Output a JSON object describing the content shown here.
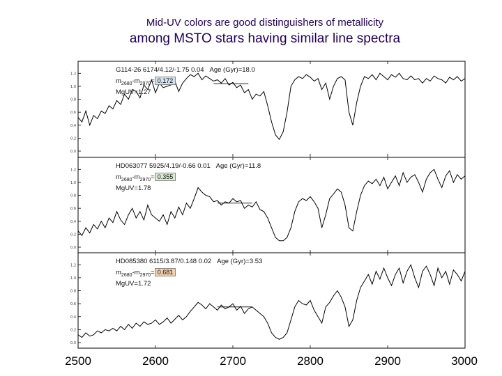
{
  "title": {
    "line1": "Mid-UV colors are good distinguishers of metallicity",
    "line2": "among MSTO stars having similar line spectra"
  },
  "chart_data": {
    "type": "line",
    "title": "Mid-UV colors are good distinguishers of metallicity among MSTO stars having similar line spectra",
    "xlabel": "",
    "xlim": [
      2500,
      3000
    ],
    "x_ticks": [
      "2500",
      "2600",
      "2700",
      "2800",
      "2900",
      "3000"
    ],
    "panels": [
      {
        "star_line": "G114-26 6174/4.12/-1.75 0.04",
        "age_label": "Age (Gyr)=18.0",
        "m_value": "0.172",
        "m_color": "#cfe3ee",
        "mguv_label": "MgUV=1.27",
        "y_ticks": [
          "1.2",
          "1.0",
          "0.8",
          "0.6",
          "0.4",
          "0.2",
          "0.0"
        ],
        "ylim": [
          0.0,
          1.3
        ],
        "continuum": [
          [
            2675,
            1.04
          ],
          [
            2720,
            1.04
          ]
        ],
        "series": {
          "x": [
            2500,
            2505,
            2510,
            2515,
            2520,
            2525,
            2530,
            2535,
            2540,
            2545,
            2550,
            2555,
            2560,
            2565,
            2570,
            2575,
            2580,
            2585,
            2590,
            2595,
            2600,
            2605,
            2610,
            2615,
            2620,
            2625,
            2630,
            2635,
            2640,
            2645,
            2650,
            2655,
            2660,
            2665,
            2670,
            2675,
            2680,
            2685,
            2690,
            2695,
            2700,
            2705,
            2710,
            2715,
            2720,
            2725,
            2730,
            2735,
            2740,
            2745,
            2750,
            2755,
            2760,
            2765,
            2770,
            2775,
            2780,
            2785,
            2790,
            2795,
            2800,
            2805,
            2810,
            2815,
            2820,
            2825,
            2830,
            2835,
            2840,
            2845,
            2850,
            2855,
            2860,
            2865,
            2870,
            2875,
            2880,
            2885,
            2890,
            2895,
            2900,
            2905,
            2910,
            2915,
            2920,
            2925,
            2930,
            2935,
            2940,
            2945,
            2950,
            2955,
            2960,
            2965,
            2970,
            2975,
            2980,
            2985,
            2990,
            2995,
            3000
          ],
          "y": [
            0.52,
            0.45,
            0.62,
            0.4,
            0.55,
            0.5,
            0.62,
            0.58,
            0.7,
            0.65,
            0.78,
            0.72,
            0.88,
            0.8,
            0.95,
            0.92,
            0.82,
            1.02,
            0.95,
            1.1,
            0.9,
            1.05,
            0.98,
            1.0,
            1.02,
            1.08,
            0.92,
            1.05,
            1.12,
            1.18,
            1.15,
            1.2,
            1.1,
            1.16,
            1.12,
            1.08,
            1.1,
            1.05,
            1.12,
            1.02,
            1.06,
            0.98,
            1.02,
            0.9,
            0.95,
            0.8,
            0.88,
            0.85,
            0.92,
            0.7,
            0.45,
            0.25,
            0.18,
            0.3,
            0.6,
            1.0,
            1.1,
            1.15,
            1.12,
            1.18,
            1.14,
            1.08,
            1.12,
            0.95,
            1.05,
            0.8,
            1.0,
            1.12,
            1.15,
            1.1,
            0.6,
            0.4,
            0.75,
            1.0,
            1.15,
            1.12,
            1.18,
            1.1,
            1.2,
            1.15,
            1.1,
            1.18,
            1.14,
            1.2,
            1.12,
            1.1,
            1.16,
            1.1,
            1.12,
            1.05,
            1.12,
            1.08,
            1.16,
            1.12,
            1.1,
            1.05,
            1.14,
            1.1,
            1.15,
            1.08,
            1.12
          ]
        }
      },
      {
        "star_line": "HD063077 5925/4.19/-0.66 0.01",
        "age_label": "Age (Gyr)=11.8",
        "m_value": "0.355",
        "m_color": "#d8ecd0",
        "mguv_label": "MgUV=1.78",
        "y_ticks": [
          "1.2",
          "1.0",
          "0.8",
          "0.6",
          "0.4",
          "0.2",
          "0.0"
        ],
        "ylim": [
          0.0,
          1.3
        ],
        "continuum": [
          [
            2680,
            0.68
          ],
          [
            2725,
            0.68
          ]
        ],
        "series": {
          "x": [
            2500,
            2505,
            2510,
            2515,
            2520,
            2525,
            2530,
            2535,
            2540,
            2545,
            2550,
            2555,
            2560,
            2565,
            2570,
            2575,
            2580,
            2585,
            2590,
            2595,
            2600,
            2605,
            2610,
            2615,
            2620,
            2625,
            2630,
            2635,
            2640,
            2645,
            2650,
            2655,
            2660,
            2665,
            2670,
            2675,
            2680,
            2685,
            2690,
            2695,
            2700,
            2705,
            2710,
            2715,
            2720,
            2725,
            2730,
            2735,
            2740,
            2745,
            2750,
            2755,
            2760,
            2765,
            2770,
            2775,
            2780,
            2785,
            2790,
            2795,
            2800,
            2805,
            2810,
            2815,
            2820,
            2825,
            2830,
            2835,
            2840,
            2845,
            2850,
            2855,
            2860,
            2865,
            2870,
            2875,
            2880,
            2885,
            2890,
            2895,
            2900,
            2905,
            2910,
            2915,
            2920,
            2925,
            2930,
            2935,
            2940,
            2945,
            2950,
            2955,
            2960,
            2965,
            2970,
            2975,
            2980,
            2985,
            2990,
            2995,
            3000
          ],
          "y": [
            0.25,
            0.18,
            0.3,
            0.22,
            0.35,
            0.28,
            0.4,
            0.3,
            0.45,
            0.38,
            0.55,
            0.42,
            0.35,
            0.5,
            0.6,
            0.45,
            0.55,
            0.42,
            0.65,
            0.5,
            0.45,
            0.4,
            0.5,
            0.35,
            0.55,
            0.45,
            0.62,
            0.5,
            0.68,
            0.6,
            0.75,
            0.92,
            0.85,
            0.8,
            0.78,
            0.7,
            0.72,
            0.65,
            0.7,
            0.68,
            0.75,
            0.7,
            0.72,
            0.6,
            0.65,
            0.62,
            0.7,
            0.58,
            0.55,
            0.45,
            0.3,
            0.15,
            0.1,
            0.1,
            0.15,
            0.3,
            0.55,
            0.7,
            0.75,
            0.72,
            0.78,
            0.7,
            0.6,
            0.3,
            0.5,
            0.75,
            0.82,
            0.9,
            0.85,
            0.65,
            0.3,
            0.25,
            0.55,
            0.8,
            0.95,
            1.02,
            0.98,
            1.05,
            0.95,
            1.08,
            0.9,
            1.0,
            1.1,
            0.95,
            1.15,
            1.0,
            1.08,
            1.12,
            1.0,
            0.85,
            1.05,
            1.15,
            1.2,
            1.05,
            0.92,
            1.1,
            1.18,
            1.0,
            1.12,
            1.05,
            1.1
          ]
        }
      },
      {
        "star_line": "HD085380 6115/3.87/0.148 0.02",
        "age_label": "Age (Gyr)=3.53",
        "m_value": "0.681",
        "m_color": "#f5cfa8",
        "mguv_label": "MgUV=1.72",
        "y_ticks": [
          "1.2",
          "1.0",
          "0.8",
          "0.6",
          "0.4",
          "0.2",
          "0.0"
        ],
        "ylim": [
          0.0,
          1.3
        ],
        "continuum": [
          [
            2680,
            0.55
          ],
          [
            2725,
            0.55
          ]
        ],
        "series": {
          "x": [
            2500,
            2505,
            2510,
            2515,
            2520,
            2525,
            2530,
            2535,
            2540,
            2545,
            2550,
            2555,
            2560,
            2565,
            2570,
            2575,
            2580,
            2585,
            2590,
            2595,
            2600,
            2605,
            2610,
            2615,
            2620,
            2625,
            2630,
            2635,
            2640,
            2645,
            2650,
            2655,
            2660,
            2665,
            2670,
            2675,
            2680,
            2685,
            2690,
            2695,
            2700,
            2705,
            2710,
            2715,
            2720,
            2725,
            2730,
            2735,
            2740,
            2745,
            2750,
            2755,
            2760,
            2765,
            2770,
            2775,
            2780,
            2785,
            2790,
            2795,
            2800,
            2805,
            2810,
            2815,
            2820,
            2825,
            2830,
            2835,
            2840,
            2845,
            2850,
            2855,
            2860,
            2865,
            2870,
            2875,
            2880,
            2885,
            2890,
            2895,
            2900,
            2905,
            2910,
            2915,
            2920,
            2925,
            2930,
            2935,
            2940,
            2945,
            2950,
            2955,
            2960,
            2965,
            2970,
            2975,
            2980,
            2985,
            2990,
            2995,
            3000
          ],
          "y": [
            0.12,
            0.08,
            0.15,
            0.1,
            0.12,
            0.18,
            0.15,
            0.2,
            0.18,
            0.22,
            0.18,
            0.25,
            0.2,
            0.28,
            0.22,
            0.3,
            0.25,
            0.32,
            0.28,
            0.3,
            0.35,
            0.28,
            0.32,
            0.38,
            0.3,
            0.36,
            0.42,
            0.35,
            0.4,
            0.48,
            0.55,
            0.62,
            0.58,
            0.52,
            0.6,
            0.55,
            0.5,
            0.58,
            0.52,
            0.55,
            0.6,
            0.5,
            0.56,
            0.45,
            0.52,
            0.55,
            0.5,
            0.45,
            0.4,
            0.3,
            0.15,
            0.08,
            0.05,
            0.08,
            0.15,
            0.35,
            0.55,
            0.65,
            0.6,
            0.58,
            0.65,
            0.5,
            0.4,
            0.3,
            0.55,
            0.62,
            0.72,
            0.8,
            0.7,
            0.55,
            0.25,
            0.35,
            0.65,
            0.85,
            0.95,
            1.05,
            0.9,
            1.1,
            0.98,
            1.15,
            1.0,
            0.88,
            1.05,
            1.15,
            0.92,
            1.1,
            1.2,
            1.0,
            0.85,
            1.1,
            1.18,
            1.05,
            0.88,
            1.15,
            1.0,
            1.1,
            0.9,
            1.12,
            1.05,
            0.95,
            1.1
          ]
        }
      }
    ]
  }
}
